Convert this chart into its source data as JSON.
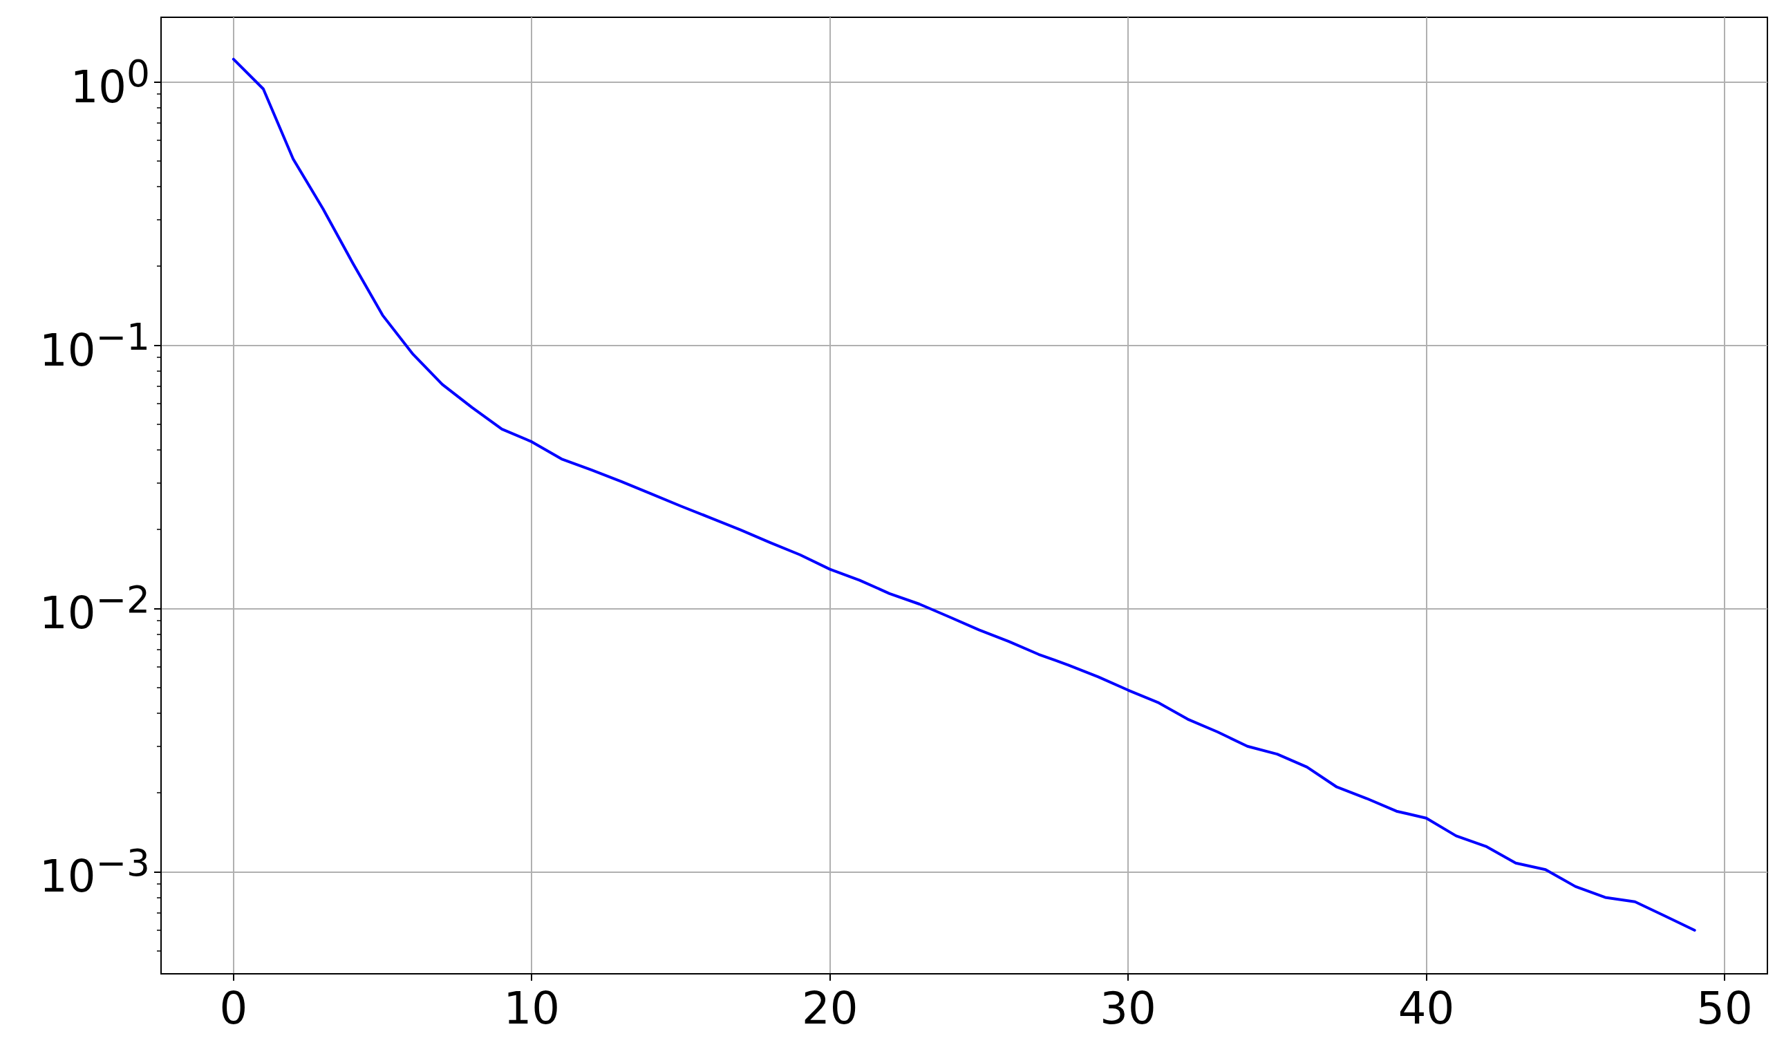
{
  "chart_data": {
    "type": "line",
    "log": "y",
    "grid": true,
    "marker": "none",
    "line_style": "solid",
    "x": [
      0,
      1,
      2,
      3,
      4,
      5,
      6,
      7,
      8,
      9,
      10,
      11,
      12,
      13,
      14,
      15,
      16,
      17,
      18,
      19,
      20,
      21,
      22,
      23,
      24,
      25,
      26,
      27,
      28,
      29,
      30,
      31,
      32,
      33,
      34,
      35,
      36,
      37,
      38,
      39,
      40,
      41,
      42,
      43,
      44,
      45,
      46,
      47,
      48,
      49
    ],
    "series": [
      {
        "color": "#0000ff",
        "values": [
          1.22,
          0.94,
          0.51,
          0.33,
          0.205,
          0.13,
          0.093,
          0.071,
          0.058,
          0.048,
          0.043,
          0.037,
          0.0336,
          0.0304,
          0.0273,
          0.0245,
          0.0221,
          0.0199,
          0.0178,
          0.016,
          0.0141,
          0.0128,
          0.0114,
          0.0104,
          0.0093,
          0.0083,
          0.0075,
          0.0067,
          0.0061,
          0.0055,
          0.0049,
          0.0044,
          0.0038,
          0.0034,
          0.003,
          0.0028,
          0.0025,
          0.0021,
          0.0019,
          0.0017,
          0.0016,
          0.00137,
          0.00125,
          0.00108,
          0.00102,
          0.00088,
          0.0008,
          0.00077,
          0.00068,
          0.0006
        ]
      }
    ],
    "xlim": [
      -2.43,
      51.44
    ],
    "xticks": [
      0,
      10,
      20,
      30,
      40,
      50
    ],
    "ylim": [
      0.00041,
      1.76
    ],
    "yticks": [
      {
        "value": 0.001,
        "label": "10$^{−3}$"
      },
      {
        "value": 0.01,
        "label": "10$^{−2}$"
      },
      {
        "value": 0.1,
        "label": "10$^{−1}$"
      },
      {
        "value": 1,
        "label": "10$^{0}$"
      },
      {
        "value": 0.0005,
        "label": null
      },
      {
        "value": 0.0006,
        "label": null
      },
      {
        "value": 0.0007,
        "label": null
      },
      {
        "value": 0.0008,
        "label": null
      },
      {
        "value": 0.0009,
        "label": null
      },
      {
        "value": 0.002,
        "label": null
      },
      {
        "value": 0.003,
        "label": null
      },
      {
        "value": 0.004,
        "label": null
      },
      {
        "value": 0.005,
        "label": null
      },
      {
        "value": 0.006,
        "label": null
      },
      {
        "value": 0.007,
        "label": null
      },
      {
        "value": 0.008,
        "label": null
      },
      {
        "value": 0.009,
        "label": null
      },
      {
        "value": 0.02,
        "label": null
      },
      {
        "value": 0.03,
        "label": null
      },
      {
        "value": 0.04,
        "label": null
      },
      {
        "value": 0.05,
        "label": null
      },
      {
        "value": 0.06,
        "label": null
      },
      {
        "value": 0.07,
        "label": null
      },
      {
        "value": 0.08,
        "label": null
      },
      {
        "value": 0.09,
        "label": null
      },
      {
        "value": 0.2,
        "label": null
      },
      {
        "value": 0.3,
        "label": null
      },
      {
        "value": 0.4,
        "label": null
      },
      {
        "value": 0.5,
        "label": null
      },
      {
        "value": 0.6,
        "label": null
      },
      {
        "value": 0.7,
        "label": null
      },
      {
        "value": 0.8,
        "label": null
      },
      {
        "value": 0.9,
        "label": null
      }
    ]
  }
}
